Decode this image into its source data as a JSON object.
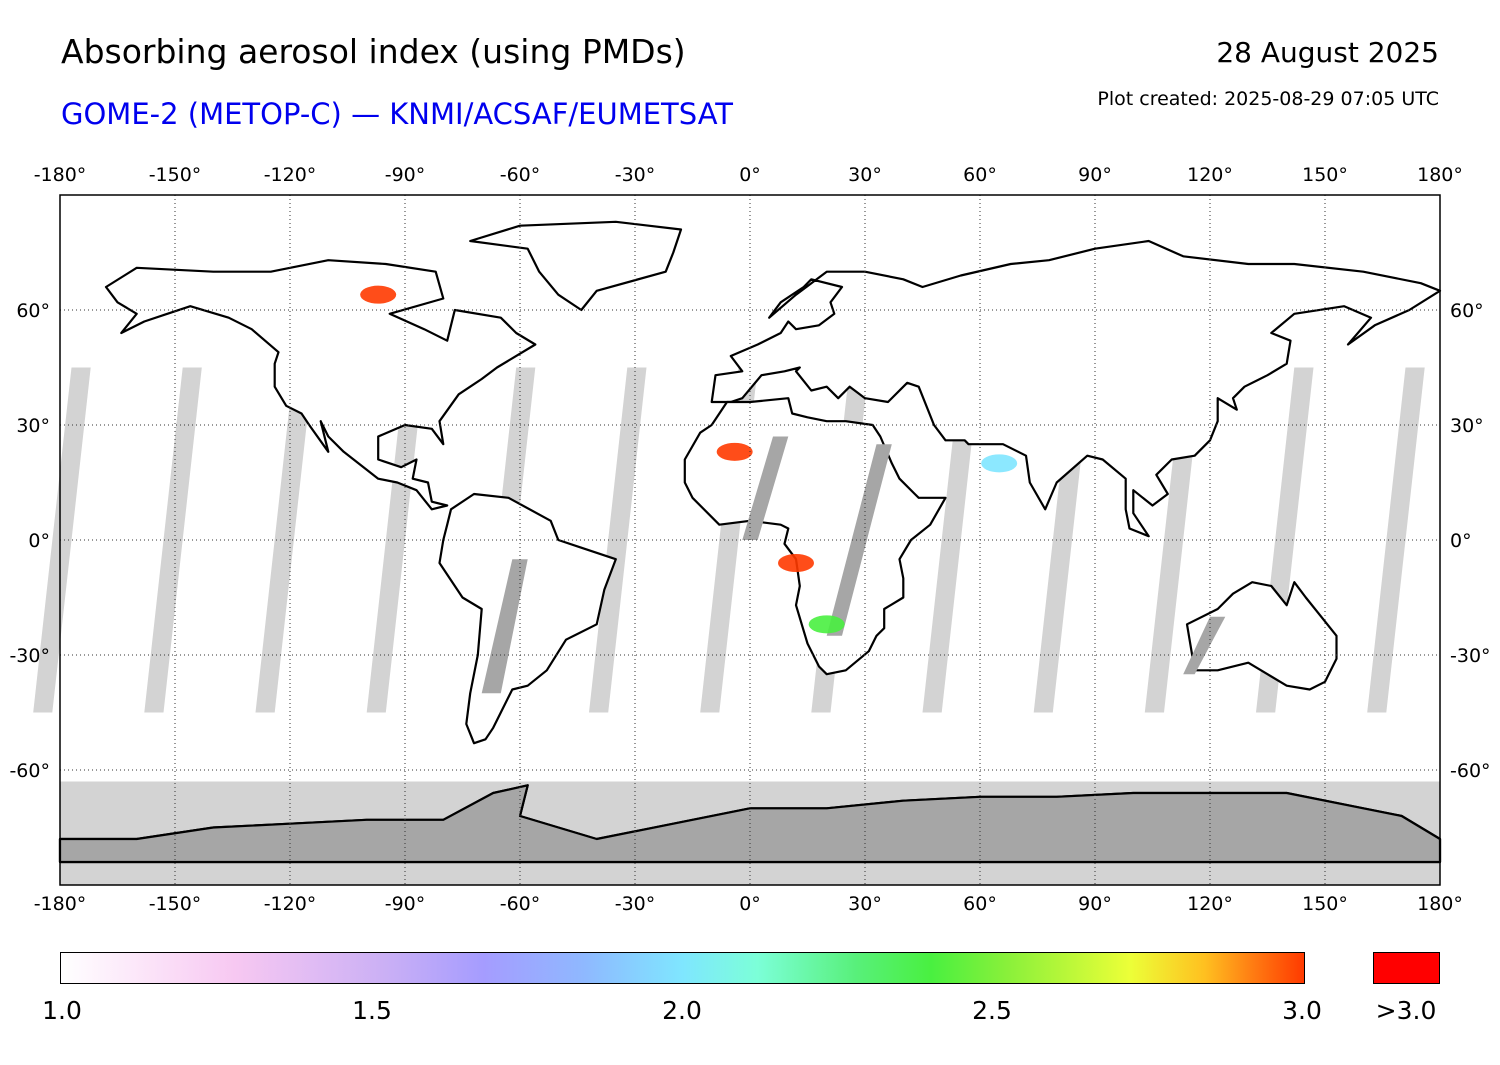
{
  "header": {
    "title": "Absorbing aerosol index (using PMDs)",
    "subtitle": "GOME-2 (METOP-C) — KNMI/ACSAF/EUMETSAT",
    "date": "28 August 2025",
    "created": "Plot created: 2025-08-29 07:05 UTC"
  },
  "map": {
    "projection": "equirectangular",
    "lon_range": [
      -180,
      180
    ],
    "lat_range": [
      -90,
      90
    ],
    "lon_ticks": [
      -180,
      -150,
      -120,
      -90,
      -60,
      -30,
      0,
      30,
      60,
      90,
      120,
      150,
      180
    ],
    "lon_labels": [
      "-180°",
      "-150°",
      "-120°",
      "-90°",
      "-60°",
      "-30°",
      "0°",
      "30°",
      "60°",
      "90°",
      "120°",
      "150°",
      "180°"
    ],
    "lat_ticks": [
      60,
      30,
      0,
      -30,
      -60
    ],
    "lat_labels": [
      "60°",
      "30°",
      "0°",
      "-30°",
      "-60°"
    ],
    "colors": {
      "land_no_data": "#a6a6a6",
      "ocean_no_data": "#d3d3d3",
      "coastline": "#000000",
      "grid": "#333333"
    },
    "aerosol_plumes": [
      {
        "region": "West Africa / Sahara",
        "lon": -4,
        "lat": 23,
        "aai": ">3.0"
      },
      {
        "region": "Central Africa",
        "lon": 12,
        "lat": -6,
        "aai": ">3.0"
      },
      {
        "region": "Southern Africa",
        "lon": 20,
        "lat": -22,
        "aai": "2.5"
      },
      {
        "region": "Canada",
        "lon": -97,
        "lat": 64,
        "aai": ">3.0"
      },
      {
        "region": "Arabian Sea / India",
        "lon": 65,
        "lat": 20,
        "aai": "2.0"
      }
    ]
  },
  "colorbar": {
    "labels": [
      "1.0",
      "1.5",
      "2.0",
      "2.5",
      "3.0"
    ],
    "min": 1.0,
    "max": 3.0,
    "over_label": ">3.0",
    "over_color": "#ff0000"
  }
}
